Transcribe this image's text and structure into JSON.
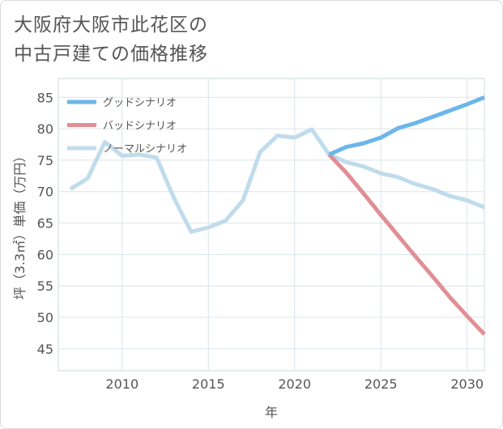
{
  "chart_data": {
    "type": "line",
    "title_lines": [
      "大阪府大阪市此花区の",
      "中古戸建ての価格推移"
    ],
    "xlabel": "年",
    "ylabel": "坪（3.3㎡）単価（万円）",
    "xlim": [
      2006.3,
      2031
    ],
    "ylim": [
      41.5,
      88
    ],
    "xticks": [
      2010,
      2015,
      2020,
      2025,
      2030
    ],
    "yticks": [
      45,
      50,
      55,
      60,
      65,
      70,
      75,
      80,
      85
    ],
    "legend_position": "top-left",
    "series": [
      {
        "name": "グッドシナリオ",
        "color": "#6cb6ea",
        "x": [
          2022,
          2023,
          2024,
          2025,
          2026,
          2027,
          2028,
          2029,
          2030,
          2031
        ],
        "values": [
          75.9,
          77.1,
          77.7,
          78.6,
          80.1,
          80.9,
          81.9,
          82.9,
          83.9,
          85.0
        ]
      },
      {
        "name": "バッドシナリオ",
        "color": "#e08f96",
        "x": [
          2022,
          2023,
          2024,
          2025,
          2026,
          2027,
          2028,
          2029,
          2030,
          2031
        ],
        "values": [
          75.9,
          73.0,
          69.7,
          66.3,
          63.0,
          59.7,
          56.5,
          53.2,
          50.2,
          47.3
        ]
      },
      {
        "name": "ノーマルシナリオ",
        "color": "#c0dcec",
        "x": [
          2007,
          2008,
          2009,
          2010,
          2011,
          2012,
          2013,
          2014,
          2015,
          2016,
          2017,
          2018,
          2019,
          2020,
          2021,
          2022,
          2023,
          2024,
          2025,
          2026,
          2027,
          2028,
          2029,
          2030,
          2031
        ],
        "values": [
          70.4,
          72.1,
          77.9,
          75.7,
          75.9,
          75.4,
          69.0,
          63.6,
          64.3,
          65.4,
          68.6,
          76.3,
          78.9,
          78.6,
          79.9,
          75.9,
          74.7,
          74.0,
          72.9,
          72.3,
          71.2,
          70.4,
          69.3,
          68.6,
          67.5
        ]
      }
    ]
  }
}
